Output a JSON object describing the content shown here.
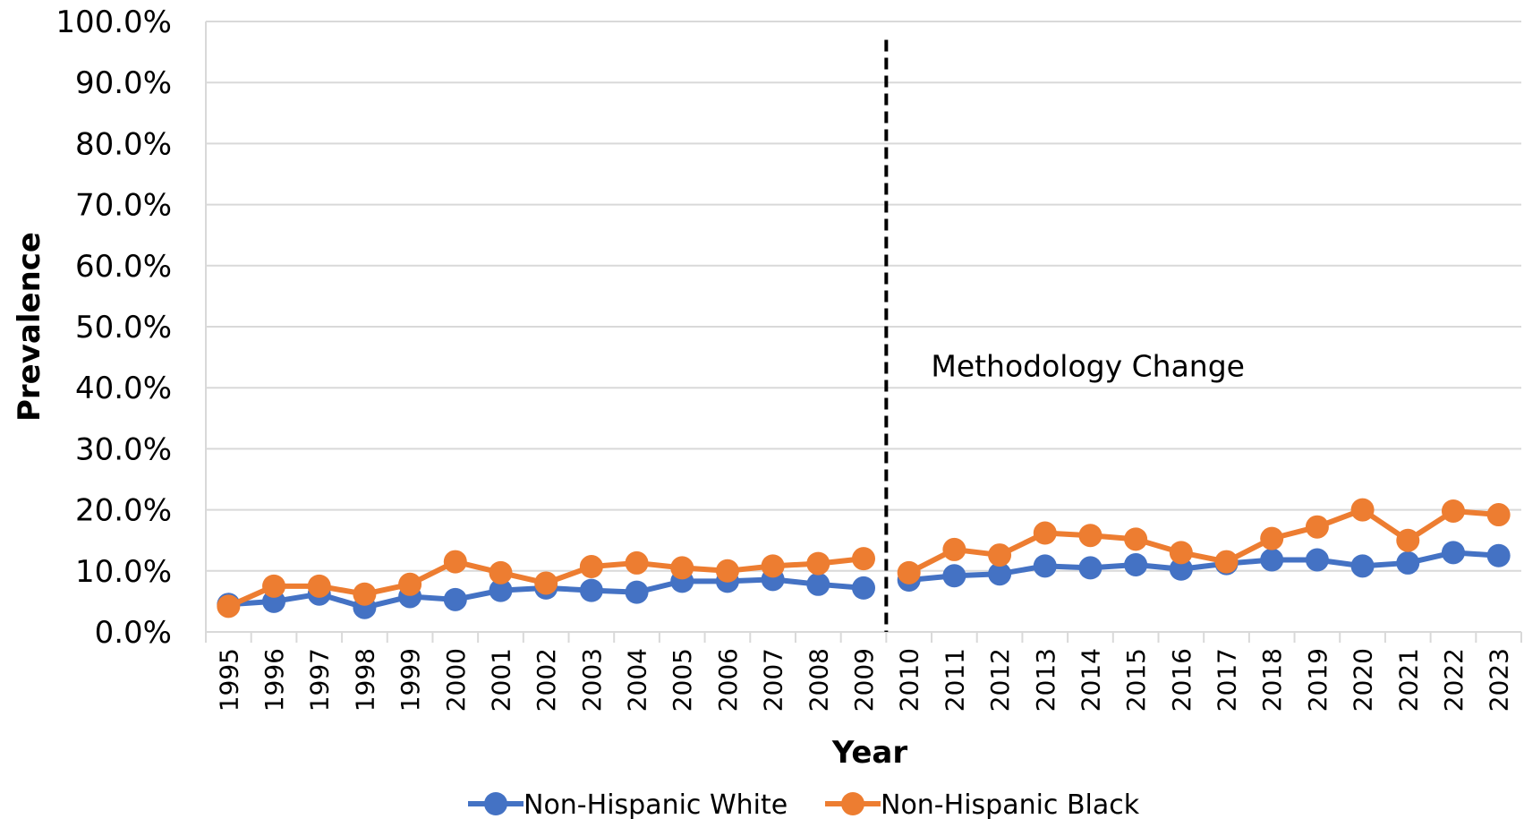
{
  "chart_data": {
    "type": "line",
    "title": "",
    "xlabel": "Year",
    "ylabel": "Prevalence",
    "ylim": [
      0,
      100
    ],
    "y_ticks": [
      "0.0%",
      "10.0%",
      "20.0%",
      "30.0%",
      "40.0%",
      "50.0%",
      "60.0%",
      "70.0%",
      "80.0%",
      "90.0%",
      "100.0%"
    ],
    "y_tick_values": [
      0,
      10,
      20,
      30,
      40,
      50,
      60,
      70,
      80,
      90,
      100
    ],
    "categories": [
      "1995",
      "1996",
      "1997",
      "1998",
      "1999",
      "2000",
      "2001",
      "2002",
      "2003",
      "2004",
      "2005",
      "2006",
      "2007",
      "2008",
      "2009",
      "2010",
      "2011",
      "2012",
      "2013",
      "2014",
      "2015",
      "2016",
      "2017",
      "2018",
      "2019",
      "2020",
      "2021",
      "2022",
      "2023"
    ],
    "grid": true,
    "legend_position": "bottom",
    "annotation": {
      "label": "Methodology Change",
      "between": [
        "2009",
        "2010"
      ],
      "line_style": "dashed"
    },
    "series": [
      {
        "name": "Non-Hispanic White",
        "color": "#4472C4",
        "values": [
          4.5,
          5.0,
          6.2,
          4.0,
          5.8,
          5.3,
          6.8,
          7.2,
          6.8,
          6.5,
          8.3,
          8.3,
          8.6,
          7.8,
          7.2,
          8.5,
          9.2,
          9.5,
          10.8,
          10.5,
          11.0,
          10.3,
          11.2,
          11.8,
          11.8,
          10.8,
          11.3,
          13.0,
          12.5
        ]
      },
      {
        "name": "Non-Hispanic Black",
        "color": "#ED7D31",
        "values": [
          4.2,
          7.5,
          7.5,
          6.2,
          7.8,
          11.5,
          9.7,
          8.0,
          10.7,
          11.3,
          10.5,
          10.0,
          10.8,
          11.2,
          12.0,
          9.7,
          13.5,
          12.6,
          16.2,
          15.8,
          15.2,
          13.0,
          11.5,
          15.3,
          17.2,
          20.0,
          15.0,
          19.8,
          19.2
        ]
      }
    ]
  }
}
